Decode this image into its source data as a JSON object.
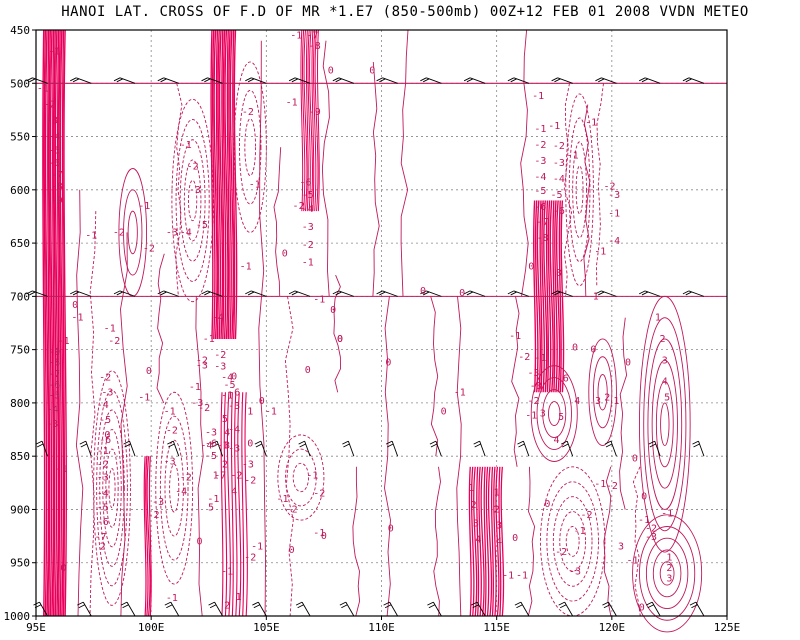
{
  "chart_data": {
    "type": "contour",
    "title": "HANOI LAT. CROSS OF F.D OF MR *1.E7 (850-500mb) 00Z+12 FEB 01 2008 VVDN METEO",
    "xlabel": "",
    "ylabel": "",
    "xlim": [
      95,
      125
    ],
    "ylim": [
      1000,
      450
    ],
    "x_ticks": [
      "95E",
      "100E",
      "105E",
      "110E",
      "115E",
      "120E",
      "125E"
    ],
    "y_ticks": [
      "450",
      "500",
      "550",
      "600",
      "650",
      "700",
      "750",
      "800",
      "850",
      "900",
      "950",
      "1000"
    ],
    "grid": true,
    "contour_color": "#c0185c",
    "dense_color": "#e8005a",
    "wind_barb_levels": [
      500,
      700,
      850,
      1000
    ],
    "contour_labels": [
      {
        "t": "-1",
        "lon": 95.8,
        "p": 470
      },
      {
        "t": "-1",
        "lon": 95.3,
        "p": 505
      },
      {
        "t": "-2",
        "lon": 95.6,
        "p": 520
      },
      {
        "t": "-3",
        "lon": 95.7,
        "p": 535
      },
      {
        "t": "-4",
        "lon": 95.8,
        "p": 550
      },
      {
        "t": "-5",
        "lon": 95.8,
        "p": 563
      },
      {
        "t": "-6",
        "lon": 95.8,
        "p": 575
      },
      {
        "t": "-7",
        "lon": 95.9,
        "p": 586
      },
      {
        "t": "-8",
        "lon": 95.9,
        "p": 597
      },
      {
        "t": "-9",
        "lon": 95.9,
        "p": 610
      },
      {
        "t": "-1",
        "lon": 97.4,
        "p": 643
      },
      {
        "t": "-2",
        "lon": 98.6,
        "p": 640
      },
      {
        "t": "-1",
        "lon": 99.7,
        "p": 615
      },
      {
        "t": "-2",
        "lon": 99.9,
        "p": 655
      },
      {
        "t": "-3",
        "lon": 100.9,
        "p": 640
      },
      {
        "t": "-4",
        "lon": 101.5,
        "p": 640
      },
      {
        "t": "-5",
        "lon": 102.2,
        "p": 633
      },
      {
        "t": "-1",
        "lon": 101.5,
        "p": 558
      },
      {
        "t": "-2",
        "lon": 101.8,
        "p": 578
      },
      {
        "t": "-3",
        "lon": 101.9,
        "p": 600
      },
      {
        "t": "-2",
        "lon": 104.2,
        "p": 527
      },
      {
        "t": "-1",
        "lon": 104.5,
        "p": 595
      },
      {
        "t": "-1",
        "lon": 104.1,
        "p": 672
      },
      {
        "t": "0",
        "lon": 105.8,
        "p": 660
      },
      {
        "t": "-1",
        "lon": 106.1,
        "p": 518
      },
      {
        "t": "-2",
        "lon": 106.4,
        "p": 615
      },
      {
        "t": "-6",
        "lon": 106.7,
        "p": 593
      },
      {
        "t": "-5",
        "lon": 106.8,
        "p": 605
      },
      {
        "t": "-4",
        "lon": 106.8,
        "p": 618
      },
      {
        "t": "-3",
        "lon": 106.8,
        "p": 635
      },
      {
        "t": "-2",
        "lon": 106.8,
        "p": 652
      },
      {
        "t": "-1",
        "lon": 106.8,
        "p": 668
      },
      {
        "t": "-1",
        "lon": 106.3,
        "p": 455
      },
      {
        "t": "-7",
        "lon": 107.0,
        "p": 455
      },
      {
        "t": "-8",
        "lon": 107.1,
        "p": 465
      },
      {
        "t": "-9",
        "lon": 107.1,
        "p": 527
      },
      {
        "t": "0",
        "lon": 107.8,
        "p": 488
      },
      {
        "t": "-1",
        "lon": 107.3,
        "p": 703
      },
      {
        "t": "0",
        "lon": 107.9,
        "p": 713
      },
      {
        "t": "0",
        "lon": 108.2,
        "p": 740
      },
      {
        "t": "0",
        "lon": 108.2,
        "p": 740
      },
      {
        "t": "0",
        "lon": 110.3,
        "p": 762
      },
      {
        "t": "0",
        "lon": 106.8,
        "p": 769
      },
      {
        "t": "0",
        "lon": 109.6,
        "p": 488
      },
      {
        "t": "0",
        "lon": 111.8,
        "p": 695
      },
      {
        "t": "0",
        "lon": 113.5,
        "p": 697
      },
      {
        "t": "0",
        "lon": 112.7,
        "p": 808
      },
      {
        "t": "-1",
        "lon": 116.8,
        "p": 512
      },
      {
        "t": "-1",
        "lon": 116.9,
        "p": 543
      },
      {
        "t": "-2",
        "lon": 116.9,
        "p": 558
      },
      {
        "t": "-3",
        "lon": 116.9,
        "p": 573
      },
      {
        "t": "-4",
        "lon": 116.9,
        "p": 588
      },
      {
        "t": "-5",
        "lon": 116.9,
        "p": 601
      },
      {
        "t": "-6",
        "lon": 116.9,
        "p": 616
      },
      {
        "t": "-7",
        "lon": 117.0,
        "p": 630
      },
      {
        "t": "-8",
        "lon": 117.0,
        "p": 645
      },
      {
        "t": "-1",
        "lon": 118.3,
        "p": 568
      },
      {
        "t": "-2",
        "lon": 117.7,
        "p": 559
      },
      {
        "t": "-3",
        "lon": 117.7,
        "p": 575
      },
      {
        "t": "-4",
        "lon": 117.7,
        "p": 590
      },
      {
        "t": "-5",
        "lon": 117.6,
        "p": 605
      },
      {
        "t": "-6",
        "lon": 117.7,
        "p": 620
      },
      {
        "t": "-1",
        "lon": 117.5,
        "p": 540
      },
      {
        "t": "-1",
        "lon": 119.1,
        "p": 537
      },
      {
        "t": "-3",
        "lon": 120.1,
        "p": 605
      },
      {
        "t": "-2",
        "lon": 119.9,
        "p": 597
      },
      {
        "t": "-1",
        "lon": 120.1,
        "p": 622
      },
      {
        "t": "-4",
        "lon": 120.1,
        "p": 648
      },
      {
        "t": "0",
        "lon": 116.5,
        "p": 672
      },
      {
        "t": "8",
        "lon": 117.7,
        "p": 678
      },
      {
        "t": "-1",
        "lon": 119.5,
        "p": 658
      },
      {
        "t": "1",
        "lon": 119.3,
        "p": 700
      },
      {
        "t": "-1",
        "lon": 115.8,
        "p": 737
      },
      {
        "t": "-2",
        "lon": 116.2,
        "p": 757
      },
      {
        "t": "-3",
        "lon": 116.6,
        "p": 772
      },
      {
        "t": "-2",
        "lon": 116.6,
        "p": 798
      },
      {
        "t": "-1",
        "lon": 116.5,
        "p": 812
      },
      {
        "t": "3",
        "lon": 117.0,
        "p": 810
      },
      {
        "t": "4",
        "lon": 117.6,
        "p": 835
      },
      {
        "t": "5",
        "lon": 117.8,
        "p": 813
      },
      {
        "t": "6",
        "lon": 118.0,
        "p": 777
      },
      {
        "t": "-1",
        "lon": 116.9,
        "p": 758
      },
      {
        "t": "-3",
        "lon": 116.7,
        "p": 784
      },
      {
        "t": "4",
        "lon": 118.5,
        "p": 798
      },
      {
        "t": "3",
        "lon": 119.4,
        "p": 798
      },
      {
        "t": "2",
        "lon": 119.8,
        "p": 795
      },
      {
        "t": "1",
        "lon": 120.2,
        "p": 798
      },
      {
        "t": "0",
        "lon": 118.4,
        "p": 748
      },
      {
        "t": "0",
        "lon": 119.2,
        "p": 750
      },
      {
        "t": "0",
        "lon": 120.7,
        "p": 762
      },
      {
        "t": "0",
        "lon": 121.0,
        "p": 852
      },
      {
        "t": "1",
        "lon": 122.0,
        "p": 720
      },
      {
        "t": "2",
        "lon": 122.2,
        "p": 740
      },
      {
        "t": "3",
        "lon": 122.3,
        "p": 760
      },
      {
        "t": "4",
        "lon": 122.3,
        "p": 780
      },
      {
        "t": "5",
        "lon": 122.4,
        "p": 795
      },
      {
        "t": "0",
        "lon": 121.4,
        "p": 888
      },
      {
        "t": "-2",
        "lon": 120.0,
        "p": 878
      },
      {
        "t": "-1",
        "lon": 119.5,
        "p": 876
      },
      {
        "t": "-2",
        "lon": 118.9,
        "p": 905
      },
      {
        "t": "-1",
        "lon": 118.6,
        "p": 920
      },
      {
        "t": "-3",
        "lon": 118.4,
        "p": 958
      },
      {
        "t": "-2",
        "lon": 117.8,
        "p": 940
      },
      {
        "t": "0",
        "lon": 117.2,
        "p": 895
      },
      {
        "t": "0",
        "lon": 115.8,
        "p": 927
      },
      {
        "t": "-1",
        "lon": 116.1,
        "p": 962
      },
      {
        "t": "-1",
        "lon": 121.4,
        "p": 910
      },
      {
        "t": "-2",
        "lon": 121.7,
        "p": 918
      },
      {
        "t": "-3",
        "lon": 121.7,
        "p": 926
      },
      {
        "t": "-1",
        "lon": 122.4,
        "p": 904
      },
      {
        "t": "3",
        "lon": 120.4,
        "p": 935
      },
      {
        "t": "1",
        "lon": 122.5,
        "p": 945
      },
      {
        "t": "2",
        "lon": 122.5,
        "p": 955
      },
      {
        "t": "3",
        "lon": 122.5,
        "p": 965
      },
      {
        "t": "-1",
        "lon": 120.9,
        "p": 948
      },
      {
        "t": "0",
        "lon": 121.3,
        "p": 992
      },
      {
        "t": "-1",
        "lon": 113.4,
        "p": 790
      },
      {
        "t": "1",
        "lon": 113.9,
        "p": 880
      },
      {
        "t": "2",
        "lon": 114.0,
        "p": 896
      },
      {
        "t": "3",
        "lon": 114.1,
        "p": 913
      },
      {
        "t": "4",
        "lon": 114.2,
        "p": 928
      },
      {
        "t": "1",
        "lon": 115.0,
        "p": 884
      },
      {
        "t": "2",
        "lon": 115.0,
        "p": 900
      },
      {
        "t": "3",
        "lon": 115.1,
        "p": 915
      },
      {
        "t": "4",
        "lon": 115.1,
        "p": 930
      },
      {
        "t": "-1",
        "lon": 115.5,
        "p": 962
      },
      {
        "t": "0",
        "lon": 110.4,
        "p": 918
      },
      {
        "t": "-2",
        "lon": 107.3,
        "p": 885
      },
      {
        "t": "-1",
        "lon": 107.0,
        "p": 868
      },
      {
        "t": "-2",
        "lon": 106.1,
        "p": 900
      },
      {
        "t": "-1",
        "lon": 105.7,
        "p": 890
      },
      {
        "t": "0",
        "lon": 104.3,
        "p": 838
      },
      {
        "t": "-1",
        "lon": 105.2,
        "p": 808
      },
      {
        "t": "1",
        "lon": 104.3,
        "p": 808
      },
      {
        "t": "0",
        "lon": 104.8,
        "p": 798
      },
      {
        "t": "-3",
        "lon": 104.2,
        "p": 858
      },
      {
        "t": "-2",
        "lon": 104.3,
        "p": 873
      },
      {
        "t": "-1",
        "lon": 104.6,
        "p": 935
      },
      {
        "t": "4",
        "lon": 103.6,
        "p": 883
      },
      {
        "t": "-2",
        "lon": 103.7,
        "p": 868
      },
      {
        "t": "-3",
        "lon": 103.6,
        "p": 843
      },
      {
        "t": "-4",
        "lon": 103.6,
        "p": 825
      },
      {
        "t": "1",
        "lon": 102.8,
        "p": 868
      },
      {
        "t": "2",
        "lon": 103.2,
        "p": 858
      },
      {
        "t": "3",
        "lon": 103.3,
        "p": 840
      },
      {
        "t": "4",
        "lon": 103.3,
        "p": 828
      },
      {
        "t": "5",
        "lon": 103.2,
        "p": 815
      },
      {
        "t": "-1",
        "lon": 103.1,
        "p": 840
      },
      {
        "t": "-5",
        "lon": 102.6,
        "p": 850
      },
      {
        "t": "-6",
        "lon": 102.6,
        "p": 838
      },
      {
        "t": "-7",
        "lon": 103.0,
        "p": 868
      },
      {
        "t": "5",
        "lon": 102.6,
        "p": 898
      },
      {
        "t": "-1",
        "lon": 102.7,
        "p": 890
      },
      {
        "t": "-3",
        "lon": 102.6,
        "p": 828
      },
      {
        "t": "-2",
        "lon": 102.3,
        "p": 805
      },
      {
        "t": "-3",
        "lon": 102.0,
        "p": 800
      },
      {
        "t": "-1",
        "lon": 101.9,
        "p": 785
      },
      {
        "t": "-2",
        "lon": 102.2,
        "p": 760
      },
      {
        "t": "-3",
        "lon": 102.2,
        "p": 765
      },
      {
        "t": "-4",
        "lon": 102.9,
        "p": 720
      },
      {
        "t": "-1",
        "lon": 102.5,
        "p": 740
      },
      {
        "t": "-2",
        "lon": 103.0,
        "p": 755
      },
      {
        "t": "-3",
        "lon": 103.0,
        "p": 766
      },
      {
        "t": "-4",
        "lon": 103.3,
        "p": 776
      },
      {
        "t": "-5",
        "lon": 103.4,
        "p": 783
      },
      {
        "t": "-6",
        "lon": 103.6,
        "p": 790
      },
      {
        "t": "-1",
        "lon": 103.3,
        "p": 793
      },
      {
        "t": "-3",
        "lon": 103.6,
        "p": 803
      },
      {
        "t": "-4",
        "lon": 102.4,
        "p": 840
      },
      {
        "t": "0",
        "lon": 103.6,
        "p": 775
      },
      {
        "t": "-2",
        "lon": 101.5,
        "p": 870
      },
      {
        "t": "-4",
        "lon": 101.3,
        "p": 883
      },
      {
        "t": "-3",
        "lon": 100.8,
        "p": 855
      },
      {
        "t": "-2",
        "lon": 100.9,
        "p": 826
      },
      {
        "t": "-1",
        "lon": 100.8,
        "p": 808
      },
      {
        "t": "-2",
        "lon": 100.1,
        "p": 905
      },
      {
        "t": "-3",
        "lon": 100.3,
        "p": 893
      },
      {
        "t": "-1",
        "lon": 100.9,
        "p": 983
      },
      {
        "t": "0",
        "lon": 99.9,
        "p": 770
      },
      {
        "t": "0",
        "lon": 98.1,
        "p": 830
      },
      {
        "t": "0",
        "lon": 96.2,
        "p": 955
      },
      {
        "t": "-1",
        "lon": 99.7,
        "p": 795
      },
      {
        "t": "-1",
        "lon": 98.2,
        "p": 730
      },
      {
        "t": "-2",
        "lon": 98.4,
        "p": 742
      },
      {
        "t": "-1",
        "lon": 97.9,
        "p": 845
      },
      {
        "t": "-2",
        "lon": 97.9,
        "p": 858
      },
      {
        "t": "-3",
        "lon": 97.9,
        "p": 870
      },
      {
        "t": "-4",
        "lon": 97.9,
        "p": 885
      },
      {
        "t": "-5",
        "lon": 97.9,
        "p": 898
      },
      {
        "t": "-6",
        "lon": 97.9,
        "p": 912
      },
      {
        "t": "-7",
        "lon": 97.8,
        "p": 926
      },
      {
        "t": "-6",
        "lon": 98.0,
        "p": 835
      },
      {
        "t": "-5",
        "lon": 98.0,
        "p": 816
      },
      {
        "t": "-4",
        "lon": 97.9,
        "p": 802
      },
      {
        "t": "-3",
        "lon": 98.1,
        "p": 790
      },
      {
        "t": "-2",
        "lon": 98.0,
        "p": 776
      },
      {
        "t": "2",
        "lon": 97.9,
        "p": 935
      },
      {
        "t": "-1",
        "lon": 96.8,
        "p": 720
      },
      {
        "t": "0",
        "lon": 96.7,
        "p": 708
      },
      {
        "t": "-1",
        "lon": 96.2,
        "p": 742
      },
      {
        "t": "-1",
        "lon": 96.1,
        "p": 862
      },
      {
        "t": "-3",
        "lon": 95.7,
        "p": 820
      },
      {
        "t": "-4",
        "lon": 95.7,
        "p": 806
      },
      {
        "t": "-5",
        "lon": 95.8,
        "p": 793
      },
      {
        "t": "-6",
        "lon": 95.8,
        "p": 783
      },
      {
        "t": "-7",
        "lon": 95.8,
        "p": 773
      },
      {
        "t": "-8",
        "lon": 95.8,
        "p": 762
      },
      {
        "t": "-9",
        "lon": 95.8,
        "p": 752
      },
      {
        "t": "2",
        "lon": 103.3,
        "p": 990
      },
      {
        "t": "1",
        "lon": 103.8,
        "p": 982
      },
      {
        "t": "0",
        "lon": 102.1,
        "p": 930
      },
      {
        "t": "0",
        "lon": 106.1,
        "p": 938
      },
      {
        "t": "-1",
        "lon": 103.3,
        "p": 958
      },
      {
        "t": "-1",
        "lon": 107.3,
        "p": 922
      },
      {
        "t": "0",
        "lon": 107.5,
        "p": 925
      },
      {
        "t": "-2",
        "lon": 104.3,
        "p": 945
      }
    ]
  }
}
